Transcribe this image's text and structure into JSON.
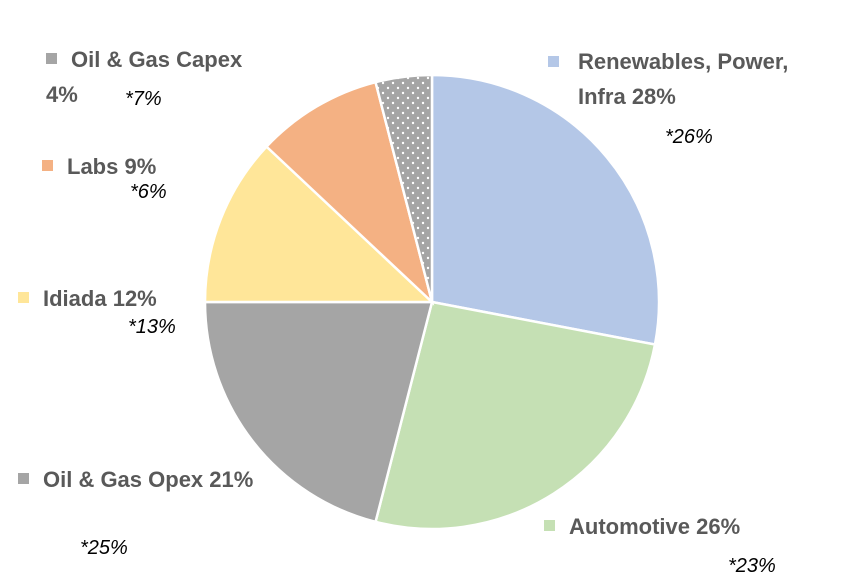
{
  "chart_data": {
    "type": "pie",
    "categories": [
      "Renewables, Power, Infra",
      "Automotive",
      "Oil & Gas Opex",
      "Idiada",
      "Labs",
      "Oil & Gas Capex"
    ],
    "values": [
      28,
      26,
      21,
      12,
      9,
      4
    ],
    "value_labels": [
      "28%",
      "26%",
      "21%",
      "12%",
      "9%",
      "4%"
    ],
    "annotations": [
      "*26%",
      "*23%",
      "*25%",
      "*13%",
      "*6%",
      "*7%"
    ],
    "colors": [
      "#b4c7e7",
      "#c5e0b4",
      "#a5a5a5",
      "#ffe699",
      "#f4b183",
      "#a5a5a5"
    ]
  }
}
